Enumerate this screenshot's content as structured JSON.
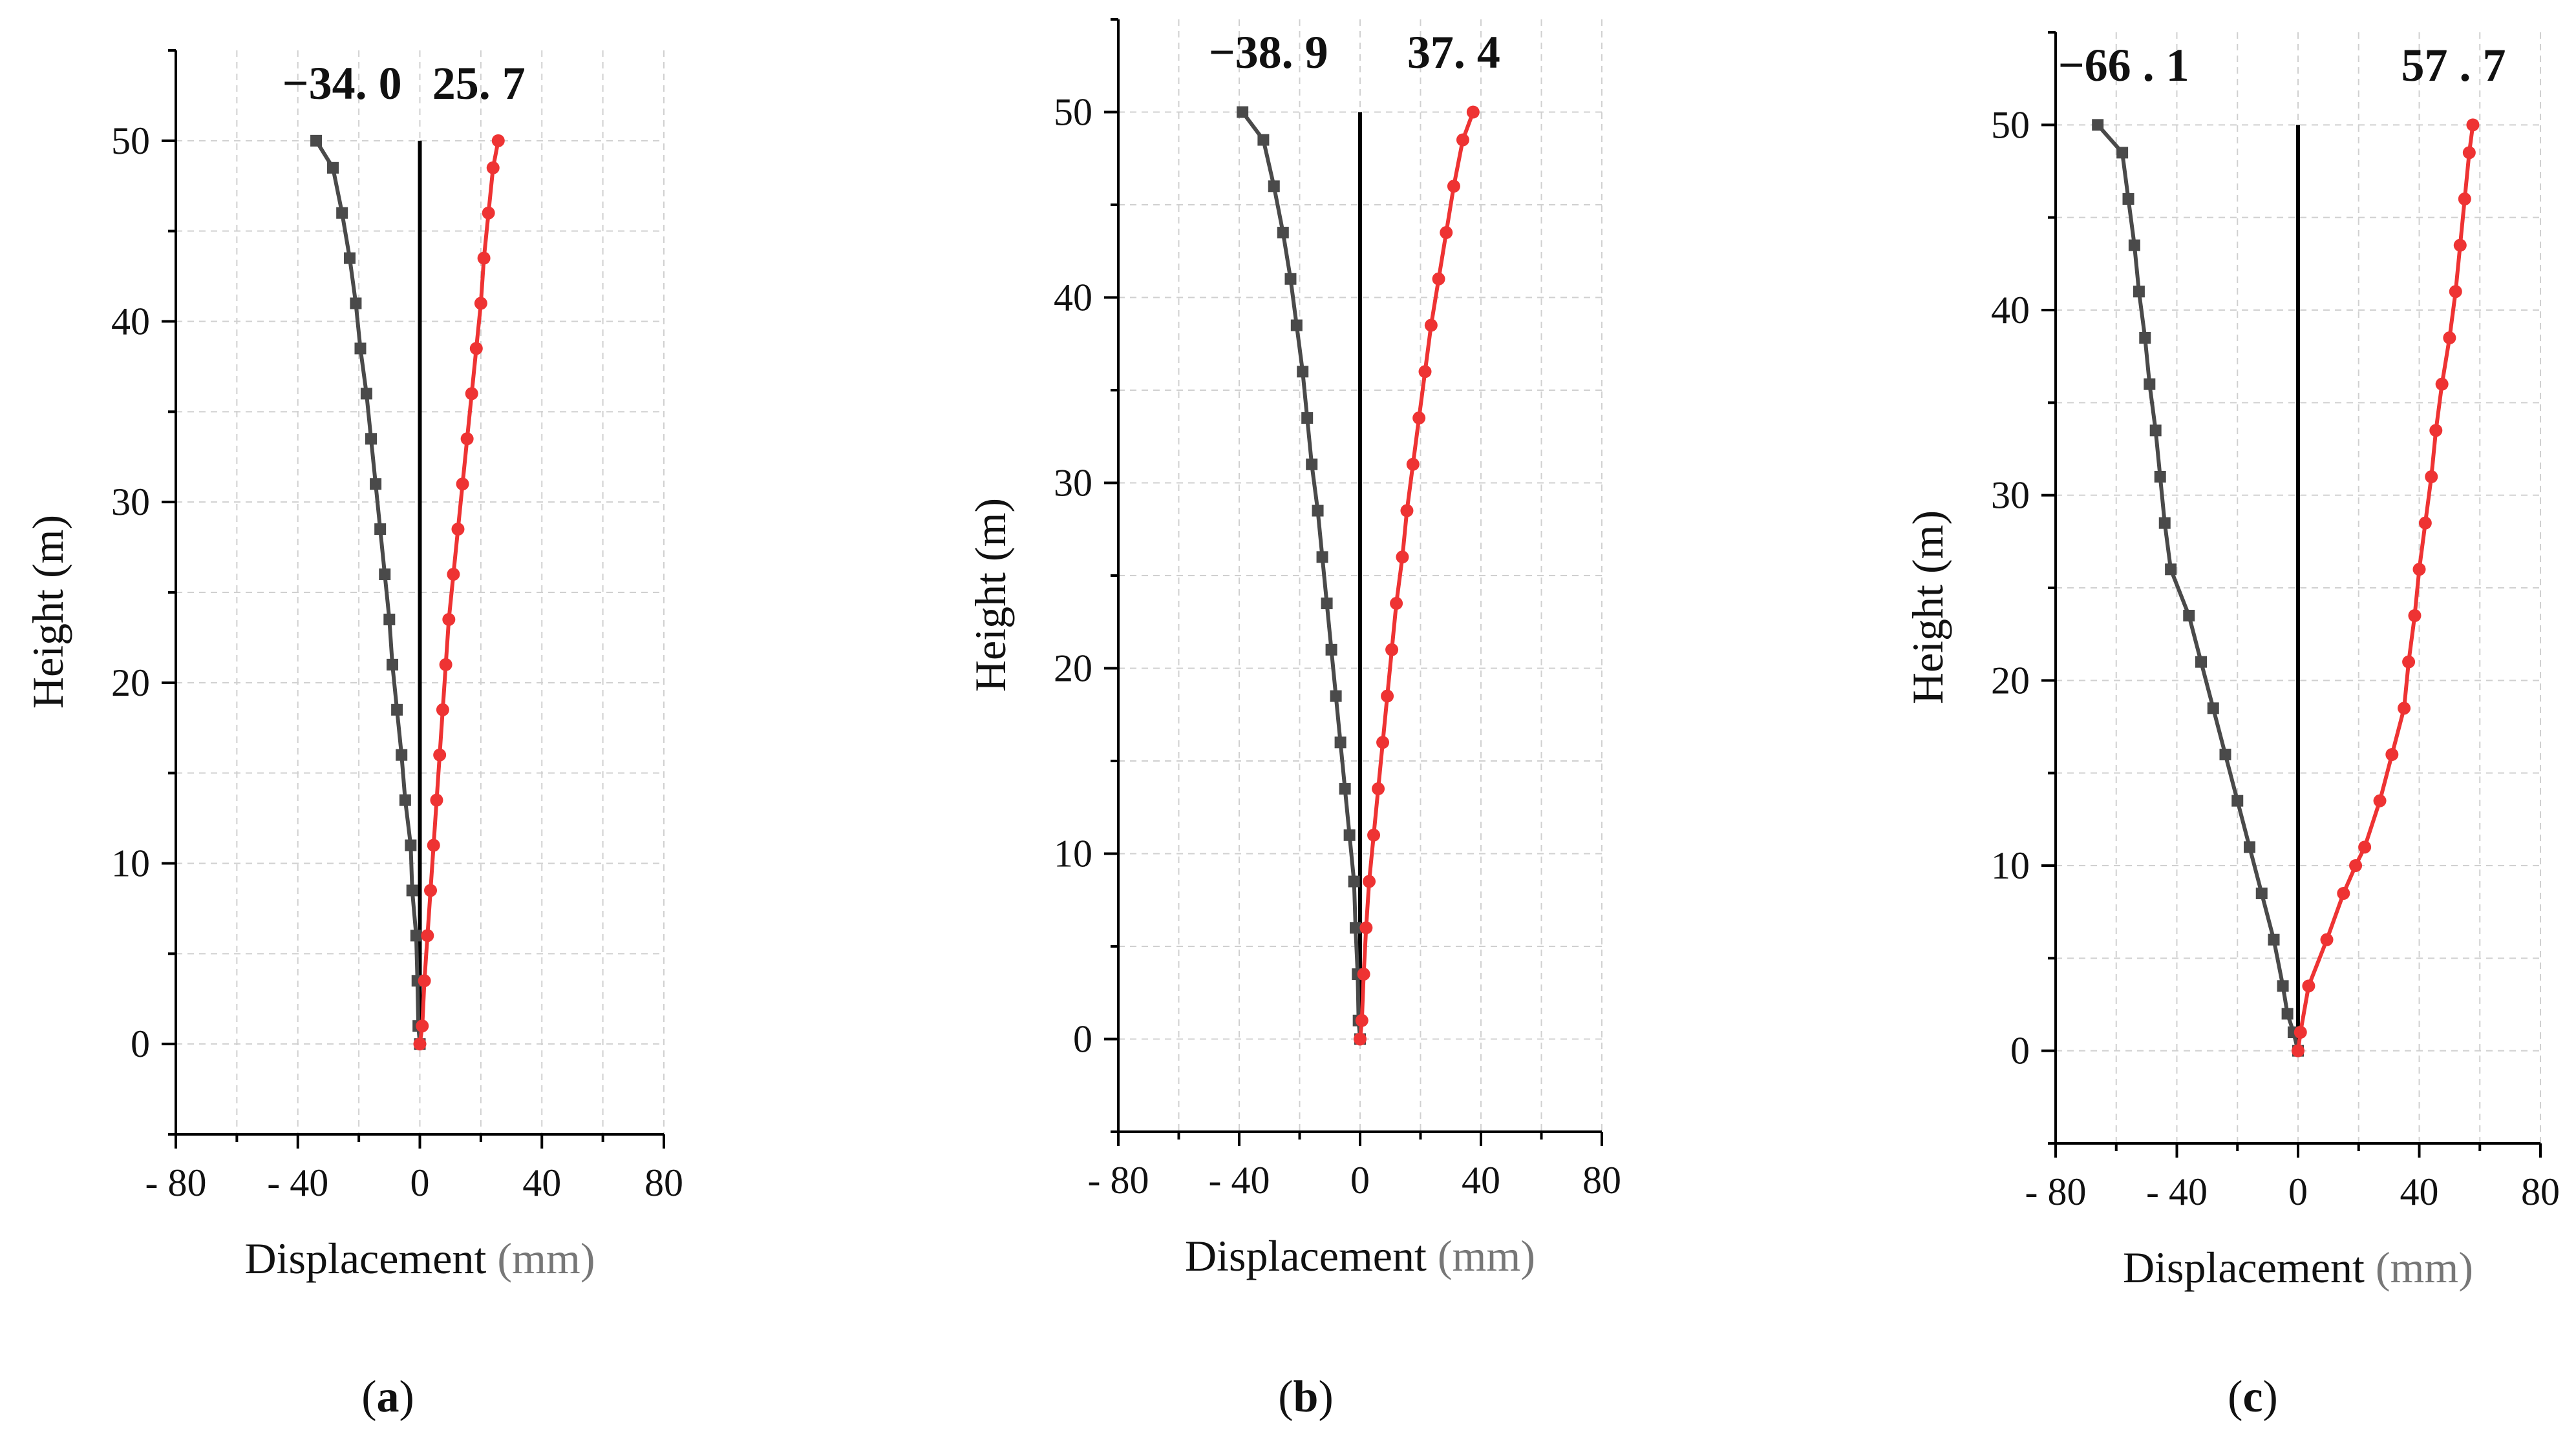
{
  "figure": {
    "panels": [
      {
        "panel_label": "a",
        "chart_data": {
          "type": "line",
          "title": "",
          "xlabel": "Displacement",
          "xlabel_unit": "(mm)",
          "ylabel": "Height (m)",
          "xlim": [
            -80,
            80
          ],
          "ylim": [
            -5,
            55
          ],
          "xticks": [
            -80,
            -40,
            0,
            40,
            80
          ],
          "xtick_labels": [
            "- 80",
            "- 40",
            "0",
            "40",
            "80"
          ],
          "yticks": [
            0,
            10,
            20,
            30,
            40,
            50
          ],
          "ytick_labels": [
            "0",
            "10",
            "20",
            "30",
            "40",
            "50"
          ],
          "grid": true,
          "reference_line": {
            "x": 0,
            "y_from": 0,
            "y_to": 50,
            "color": "#000000"
          },
          "series": [
            {
              "name": "negative",
              "color": "#4a4a4a",
              "marker": "square",
              "points": [
                [
                  0,
                  0
                ],
                [
                  -0.5,
                  1
                ],
                [
                  -0.8,
                  3.5
                ],
                [
                  -1.2,
                  6
                ],
                [
                  -2.5,
                  8.5
                ],
                [
                  -3,
                  11
                ],
                [
                  -4.8,
                  13.5
                ],
                [
                  -6,
                  16
                ],
                [
                  -7.5,
                  18.5
                ],
                [
                  -9,
                  21
                ],
                [
                  -10,
                  23.5
                ],
                [
                  -11.5,
                  26
                ],
                [
                  -13,
                  28.5
                ],
                [
                  -14.5,
                  31
                ],
                [
                  -16,
                  33.5
                ],
                [
                  -17.5,
                  36
                ],
                [
                  -19.5,
                  38.5
                ],
                [
                  -21,
                  41
                ],
                [
                  -23,
                  43.5
                ],
                [
                  -25.5,
                  46
                ],
                [
                  -28.5,
                  48.5
                ],
                [
                  -34,
                  50
                ]
              ],
              "end_label": "−34. 0"
            },
            {
              "name": "positive",
              "color": "#ee3333",
              "marker": "circle",
              "points": [
                [
                  0,
                  0
                ],
                [
                  0.8,
                  1
                ],
                [
                  1.5,
                  3.5
                ],
                [
                  2.5,
                  6
                ],
                [
                  3.5,
                  8.5
                ],
                [
                  4.5,
                  11
                ],
                [
                  5.5,
                  13.5
                ],
                [
                  6.5,
                  16
                ],
                [
                  7.5,
                  18.5
                ],
                [
                  8.5,
                  21
                ],
                [
                  9.5,
                  23.5
                ],
                [
                  11,
                  26
                ],
                [
                  12.5,
                  28.5
                ],
                [
                  14,
                  31
                ],
                [
                  15.5,
                  33.5
                ],
                [
                  17,
                  36
                ],
                [
                  18.5,
                  38.5
                ],
                [
                  20,
                  41
                ],
                [
                  21,
                  43.5
                ],
                [
                  22.5,
                  46
                ],
                [
                  24,
                  48.5
                ],
                [
                  25.7,
                  50
                ]
              ],
              "end_label": "25. 7"
            }
          ]
        }
      },
      {
        "panel_label": "b",
        "chart_data": {
          "type": "line",
          "title": "",
          "xlabel": "Displacement",
          "xlabel_unit": "(mm)",
          "ylabel": "Height (m)",
          "xlim": [
            -80,
            80
          ],
          "ylim": [
            -5,
            55
          ],
          "xticks": [
            -80,
            -40,
            0,
            40,
            80
          ],
          "xtick_labels": [
            "- 80",
            "- 40",
            "0",
            "40",
            "80"
          ],
          "yticks": [
            0,
            10,
            20,
            30,
            40,
            50
          ],
          "ytick_labels": [
            "0",
            "10",
            "20",
            "30",
            "40",
            "50"
          ],
          "grid": true,
          "reference_line": {
            "x": 0,
            "y_from": 0,
            "y_to": 50,
            "color": "#000000"
          },
          "series": [
            {
              "name": "negative",
              "color": "#4a4a4a",
              "marker": "square",
              "points": [
                [
                  0,
                  0
                ],
                [
                  -0.5,
                  1
                ],
                [
                  -0.8,
                  3.5
                ],
                [
                  -1.5,
                  6
                ],
                [
                  -2,
                  8.5
                ],
                [
                  -3.5,
                  11
                ],
                [
                  -5,
                  13.5
                ],
                [
                  -6.5,
                  16
                ],
                [
                  -8,
                  18.5
                ],
                [
                  -9.5,
                  21
                ],
                [
                  -11,
                  23.5
                ],
                [
                  -12.5,
                  26
                ],
                [
                  -14,
                  28.5
                ],
                [
                  -16,
                  31
                ],
                [
                  -17.5,
                  33.5
                ],
                [
                  -19,
                  36
                ],
                [
                  -21,
                  38.5
                ],
                [
                  -23,
                  41
                ],
                [
                  -25.5,
                  43.5
                ],
                [
                  -28.5,
                  46
                ],
                [
                  -32,
                  48.5
                ],
                [
                  -38.9,
                  50
                ]
              ],
              "end_label": "−38. 9"
            },
            {
              "name": "positive",
              "color": "#ee3333",
              "marker": "circle",
              "points": [
                [
                  0,
                  0
                ],
                [
                  0.6,
                  1
                ],
                [
                  1.2,
                  3.5
                ],
                [
                  2,
                  6
                ],
                [
                  3,
                  8.5
                ],
                [
                  4.5,
                  11
                ],
                [
                  6,
                  13.5
                ],
                [
                  7.5,
                  16
                ],
                [
                  9,
                  18.5
                ],
                [
                  10.5,
                  21
                ],
                [
                  12,
                  23.5
                ],
                [
                  14,
                  26
                ],
                [
                  15.5,
                  28.5
                ],
                [
                  17.5,
                  31
                ],
                [
                  19.5,
                  33.5
                ],
                [
                  21.5,
                  36
                ],
                [
                  23.5,
                  38.5
                ],
                [
                  26,
                  41
                ],
                [
                  28.5,
                  43.5
                ],
                [
                  31,
                  46
                ],
                [
                  34,
                  48.5
                ],
                [
                  37.4,
                  50
                ]
              ],
              "end_label": "37. 4"
            }
          ]
        }
      },
      {
        "panel_label": "c",
        "chart_data": {
          "type": "line",
          "title": "",
          "xlabel": "Displacement",
          "xlabel_unit": "(mm)",
          "ylabel": "Height (m)",
          "xlim": [
            -80,
            80
          ],
          "ylim": [
            -5,
            55
          ],
          "xticks": [
            -80,
            -40,
            0,
            40,
            80
          ],
          "xtick_labels": [
            "- 80",
            "- 40",
            "0",
            "40",
            "80"
          ],
          "yticks": [
            0,
            10,
            20,
            30,
            40,
            50
          ],
          "ytick_labels": [
            "0",
            "10",
            "20",
            "30",
            "40",
            "50"
          ],
          "grid": true,
          "reference_line": {
            "x": 0,
            "y_from": 0,
            "y_to": 50,
            "color": "#000000"
          },
          "series": [
            {
              "name": "negative",
              "color": "#4a4a4a",
              "marker": "square",
              "points": [
                [
                  0,
                  0
                ],
                [
                  -1.5,
                  1
                ],
                [
                  -3.5,
                  2
                ],
                [
                  -5,
                  3.5
                ],
                [
                  -8,
                  6
                ],
                [
                  -12,
                  8.5
                ],
                [
                  -16,
                  11
                ],
                [
                  -20,
                  13.5
                ],
                [
                  -24,
                  16
                ],
                [
                  -28,
                  18.5
                ],
                [
                  -32,
                  21
                ],
                [
                  -36,
                  23.5
                ],
                [
                  -42,
                  26
                ],
                [
                  -44,
                  28.5
                ],
                [
                  -45.5,
                  31
                ],
                [
                  -47,
                  33.5
                ],
                [
                  -49,
                  36
                ],
                [
                  -50.5,
                  38.5
                ],
                [
                  -52.5,
                  41
                ],
                [
                  -54,
                  43.5
                ],
                [
                  -56,
                  46
                ],
                [
                  -58,
                  48.5
                ],
                [
                  -66.1,
                  50
                ]
              ],
              "end_label": "−66 . 1"
            },
            {
              "name": "positive",
              "color": "#ee3333",
              "marker": "circle",
              "points": [
                [
                  0,
                  0
                ],
                [
                  0.8,
                  1
                ],
                [
                  3.5,
                  3.5
                ],
                [
                  9.5,
                  6
                ],
                [
                  15,
                  8.5
                ],
                [
                  19,
                  10
                ],
                [
                  22,
                  11
                ],
                [
                  27,
                  13.5
                ],
                [
                  31,
                  16
                ],
                [
                  35,
                  18.5
                ],
                [
                  36.5,
                  21
                ],
                [
                  38.5,
                  23.5
                ],
                [
                  40,
                  26
                ],
                [
                  42,
                  28.5
                ],
                [
                  44,
                  31
                ],
                [
                  45.5,
                  33.5
                ],
                [
                  47.5,
                  36
                ],
                [
                  50,
                  38.5
                ],
                [
                  52,
                  41
                ],
                [
                  53.5,
                  43.5
                ],
                [
                  55,
                  46
                ],
                [
                  56.5,
                  48.5
                ],
                [
                  57.7,
                  50
                ]
              ],
              "end_label": "57 . 7"
            }
          ]
        }
      }
    ]
  }
}
